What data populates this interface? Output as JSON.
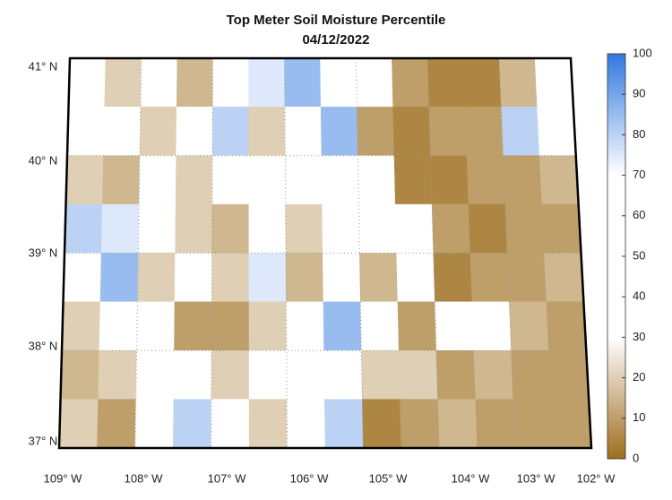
{
  "title": "Top Meter Soil Moisture Percentile",
  "subtitle": "04/12/2022",
  "map": {
    "lat_labels": [
      "41° N",
      "40° N",
      "39° N",
      "38° N",
      "37° N"
    ],
    "lon_labels": [
      "109° W",
      "108° W",
      "107° W",
      "106° W",
      "105° W",
      "104° W",
      "103° W",
      "102° W"
    ],
    "grid": [
      [
        30,
        20,
        60,
        15,
        40,
        75,
        85,
        40,
        60,
        10,
        5,
        5,
        15,
        40
      ],
      [
        70,
        30,
        20,
        50,
        80,
        20,
        50,
        85,
        10,
        5,
        10,
        10,
        80,
        30
      ],
      [
        20,
        15,
        40,
        20,
        60,
        40,
        30,
        70,
        60,
        5,
        5,
        10,
        10,
        15
      ],
      [
        80,
        75,
        60,
        20,
        15,
        50,
        20,
        50,
        40,
        40,
        10,
        5,
        10,
        10
      ],
      [
        30,
        85,
        20,
        40,
        20,
        75,
        15,
        40,
        15,
        50,
        5,
        10,
        10,
        15
      ],
      [
        20,
        50,
        70,
        10,
        10,
        20,
        50,
        85,
        40,
        10,
        30,
        40,
        15,
        10
      ],
      [
        15,
        20,
        60,
        70,
        20,
        30,
        60,
        50,
        20,
        20,
        10,
        15,
        10,
        10
      ],
      [
        20,
        10,
        40,
        80,
        40,
        20,
        40,
        80,
        5,
        10,
        15,
        10,
        10,
        10
      ]
    ]
  },
  "colorbar": {
    "lim": [
      0,
      100
    ],
    "ticks": [
      0,
      10,
      20,
      30,
      40,
      50,
      60,
      70,
      80,
      90,
      100
    ]
  }
}
